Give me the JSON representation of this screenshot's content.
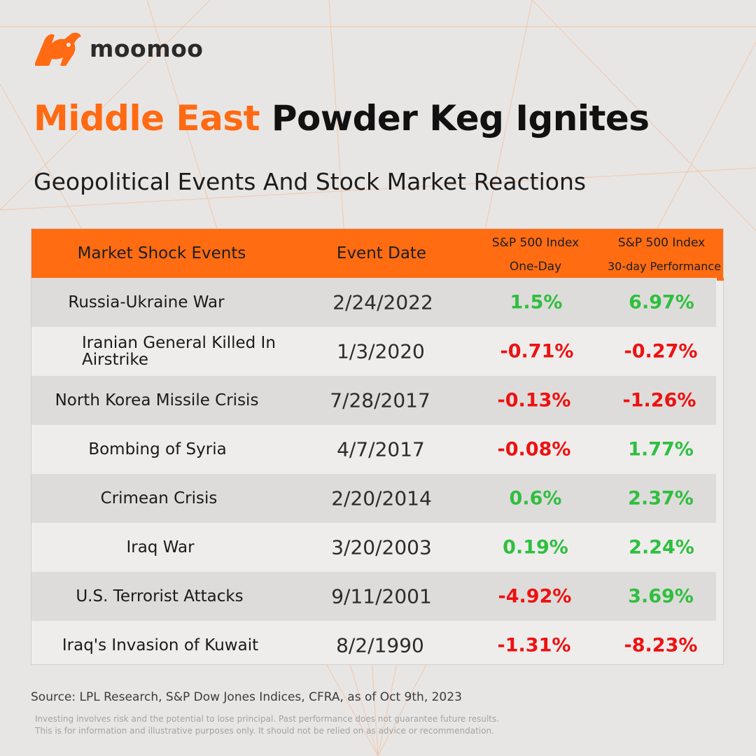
{
  "brand": {
    "name": "moomoo"
  },
  "title": {
    "accent": "Middle East",
    "rest": " Powder Keg Ignites"
  },
  "subtitle": "Geopolitical Events And Stock Market Reactions",
  "table": {
    "headers": {
      "event": "Market Shock Events",
      "date": "Event Date",
      "one_day_line1": "S&P 500 Index",
      "one_day_line2": "One-Day",
      "thirty_day_line1": "S&P 500 Index",
      "thirty_day_line2": "30-day Performance"
    },
    "rows": [
      {
        "event": "Russia-Ukraine War",
        "date": "2/24/2022",
        "one_day": "1.5%",
        "thirty_day": "6.97%"
      },
      {
        "event": "Iranian General Killed In Airstrike",
        "date": "1/3/2020",
        "one_day": "-0.71%",
        "thirty_day": "-0.27%"
      },
      {
        "event": "North Korea Missile Crisis",
        "date": "7/28/2017",
        "one_day": "-0.13%",
        "thirty_day": "-1.26%"
      },
      {
        "event": "Bombing of Syria",
        "date": "4/7/2017",
        "one_day": "-0.08%",
        "thirty_day": "1.77%"
      },
      {
        "event": "Crimean Crisis",
        "date": "2/20/2014",
        "one_day": "0.6%",
        "thirty_day": "2.37%"
      },
      {
        "event": "Iraq War",
        "date": "3/20/2003",
        "one_day": "0.19%",
        "thirty_day": "2.24%"
      },
      {
        "event": "U.S. Terrorist Attacks",
        "date": "9/11/2001",
        "one_day": "-4.92%",
        "thirty_day": "3.69%"
      },
      {
        "event": "Iraq's Invasion of Kuwait",
        "date": "8/2/1990",
        "one_day": "-1.31%",
        "thirty_day": "-8.23%"
      }
    ]
  },
  "source": "Source: LPL Research, S&P Dow Jones Indices, CFRA,  as of Oct 9th, 2023",
  "disclaimer": {
    "line1": "Investing involves risk and the potential to lose principal. Past performance does not guarantee future results.",
    "line2": "This is for information and illustrative purposes only. It should not be relied on as advice or recommendation."
  },
  "colors": {
    "accent": "#ff6a13",
    "header_bg": "#ff6c12",
    "positive": "#2fbf3f",
    "negative": "#ee1111",
    "background": "#e8e6e4"
  }
}
